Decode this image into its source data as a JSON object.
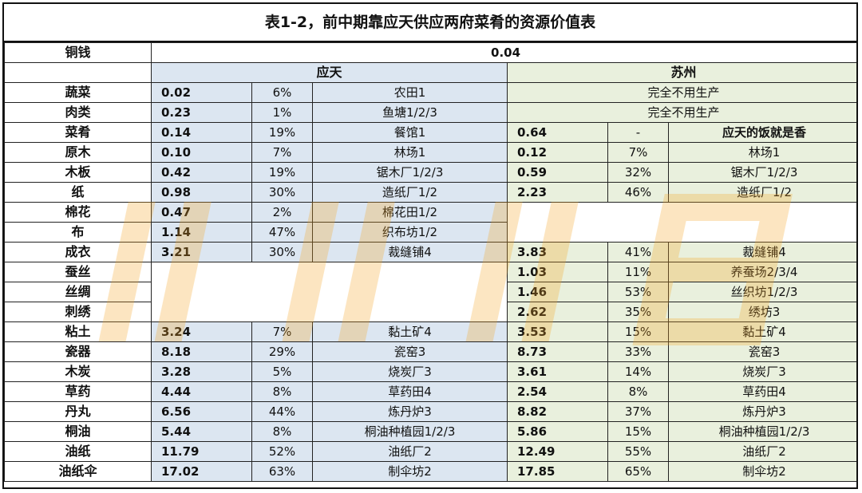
{
  "title": "表1-2，前中期靠应天供应两府菜肴的资源价值表",
  "copper": {
    "label": "铜钱",
    "value": "0.04"
  },
  "regions": {
    "yingtian": "应天",
    "suzhou": "苏州"
  },
  "rows": [
    {
      "name": "蔬菜",
      "yt": {
        "v": "0.02",
        "p": "6%",
        "b": "农田1"
      },
      "sz": {
        "note": "完全不用生产"
      }
    },
    {
      "name": "肉类",
      "yt": {
        "v": "0.23",
        "p": "1%",
        "b": "鱼塘1/2/3"
      },
      "sz": {
        "note": "完全不用生产"
      }
    },
    {
      "name": "菜肴",
      "yt": {
        "v": "0.14",
        "p": "19%",
        "b": "餐馆1"
      },
      "sz": {
        "v": "0.64",
        "p": "-",
        "b": "应天的饭就是香"
      }
    },
    {
      "name": "原木",
      "yt": {
        "v": "0.10",
        "p": "7%",
        "b": "林场1"
      },
      "sz": {
        "v": "0.12",
        "p": "7%",
        "b": "林场1"
      }
    },
    {
      "name": "木板",
      "yt": {
        "v": "0.42",
        "p": "19%",
        "b": "锯木厂1/2/3"
      },
      "sz": {
        "v": "0.59",
        "p": "32%",
        "b": "锯木厂1/2/3"
      }
    },
    {
      "name": "纸",
      "yt": {
        "v": "0.98",
        "p": "30%",
        "b": "造纸厂1/2"
      },
      "sz": {
        "v": "2.23",
        "p": "46%",
        "b": "造纸厂1/2"
      }
    },
    {
      "name": "棉花",
      "yt": {
        "v": "0.47",
        "p": "2%",
        "b": "棉花田1/2"
      }
    },
    {
      "name": "布",
      "yt": {
        "v": "1.14",
        "p": "47%",
        "b": "织布坊1/2"
      }
    },
    {
      "name": "成衣",
      "yt": {
        "v": "3.21",
        "p": "30%",
        "b": "裁缝铺4"
      },
      "sz": {
        "v": "3.83",
        "p": "41%",
        "b": "裁缝铺4"
      }
    },
    {
      "name": "蚕丝",
      "sz": {
        "v": "1.03",
        "p": "11%",
        "b": "养蚕场2/3/4"
      }
    },
    {
      "name": "丝绸",
      "sz": {
        "v": "1.46",
        "p": "53%",
        "b": "丝织坊1/2/3"
      }
    },
    {
      "name": "刺绣",
      "sz": {
        "v": "2.62",
        "p": "35%",
        "b": "绣坊3"
      }
    },
    {
      "name": "粘土",
      "yt": {
        "v": "3.24",
        "p": "7%",
        "b": "黏土矿4"
      },
      "sz": {
        "v": "3.53",
        "p": "15%",
        "b": "黏土矿4"
      }
    },
    {
      "name": "瓷器",
      "yt": {
        "v": "8.18",
        "p": "29%",
        "b": "瓷窑3"
      },
      "sz": {
        "v": "8.73",
        "p": "33%",
        "b": "瓷窑3"
      }
    },
    {
      "name": "木炭",
      "yt": {
        "v": "3.28",
        "p": "5%",
        "b": "烧炭厂3"
      },
      "sz": {
        "v": "3.61",
        "p": "14%",
        "b": "烧炭厂3"
      }
    },
    {
      "name": "草药",
      "yt": {
        "v": "4.44",
        "p": "8%",
        "b": "草药田4"
      },
      "sz": {
        "v": "2.54",
        "p": "8%",
        "b": "草药田4"
      }
    },
    {
      "name": "丹丸",
      "yt": {
        "v": "6.56",
        "p": "44%",
        "b": "炼丹炉3"
      },
      "sz": {
        "v": "8.82",
        "p": "37%",
        "b": "炼丹炉3"
      }
    },
    {
      "name": "桐油",
      "yt": {
        "v": "5.44",
        "p": "8%",
        "b": "桐油种植园1/2/3"
      },
      "sz": {
        "v": "5.86",
        "p": "15%",
        "b": "桐油种植园1/2/3"
      }
    },
    {
      "name": "油纸",
      "yt": {
        "v": "11.79",
        "p": "52%",
        "b": "油纸厂2"
      },
      "sz": {
        "v": "12.49",
        "p": "55%",
        "b": "油纸厂2"
      }
    },
    {
      "name": "油纸伞",
      "yt": {
        "v": "17.02",
        "p": "63%",
        "b": "制伞坊2"
      },
      "sz": {
        "v": "17.85",
        "p": "65%",
        "b": "制伞坊2"
      }
    }
  ],
  "colors": {
    "yingtian_bg": "#dce6f1",
    "suzhou_bg": "#e9f0dd",
    "watermark": "#f5a623"
  }
}
